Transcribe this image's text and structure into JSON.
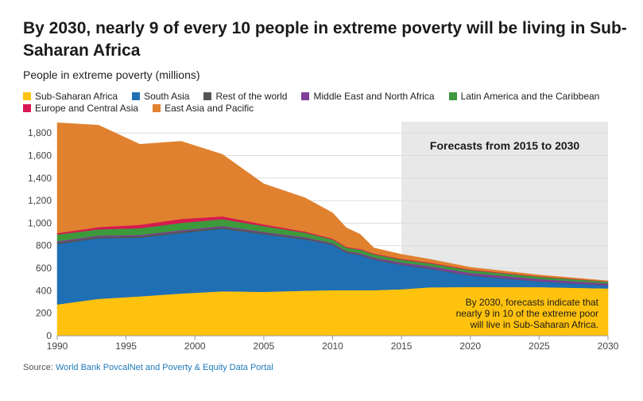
{
  "header": {
    "title": "By 2030, nearly 9 of every 10 people in extreme poverty will be living in Sub-Saharan Africa",
    "subtitle": "People in extreme poverty (millions)"
  },
  "source": {
    "label": "Source:",
    "link_text": "World Bank PovcalNet and Poverty & Equity Data Portal"
  },
  "chart_data": {
    "type": "area",
    "stacked": true,
    "title": "By 2030, nearly 9 of every 10 people in extreme poverty will be living in Sub-Saharan Africa",
    "ylabel": "People in extreme poverty (millions)",
    "xlabel": "",
    "xlim": [
      1990,
      2030
    ],
    "ylim": [
      0,
      1900
    ],
    "x_ticks": [
      "1990",
      "1995",
      "2000",
      "2005",
      "2010",
      "2015",
      "2020",
      "2025",
      "2030"
    ],
    "y_ticks": [
      "0",
      "200",
      "400",
      "600",
      "800",
      "1,000",
      "1,200",
      "1,400",
      "1,600",
      "1,800"
    ],
    "grid": true,
    "legend_position": "top",
    "x": [
      1990,
      1993,
      1996,
      1999,
      2002,
      2005,
      2008,
      2010,
      2011,
      2012,
      2013,
      2015,
      2017,
      2020,
      2025,
      2030
    ],
    "series": [
      {
        "name": "Sub-Saharan Africa",
        "color": "#ffc20e",
        "values": [
          278,
          328,
          350,
          375,
          395,
          390,
          400,
          405,
          405,
          405,
          405,
          413,
          430,
          433,
          432,
          420
        ]
      },
      {
        "name": "South Asia",
        "color": "#1f6fb5",
        "values": [
          536,
          537,
          520,
          537,
          555,
          510,
          455,
          400,
          330,
          310,
          270,
          215,
          165,
          100,
          50,
          25
        ]
      },
      {
        "name": "Rest of the world",
        "color": "#555555",
        "values": [
          15,
          15,
          15,
          15,
          15,
          13,
          12,
          10,
          9,
          9,
          8,
          7,
          6,
          5,
          4,
          3
        ]
      },
      {
        "name": "Middle East and North Africa",
        "color": "#7f3f98",
        "values": [
          10,
          10,
          10,
          10,
          10,
          9,
          8,
          8,
          8,
          10,
          12,
          15,
          18,
          20,
          18,
          16
        ]
      },
      {
        "name": "Latin America and the Caribbean",
        "color": "#3c9a3c",
        "values": [
          60,
          55,
          60,
          65,
          60,
          52,
          40,
          32,
          30,
          30,
          28,
          26,
          25,
          24,
          20,
          16
        ]
      },
      {
        "name": "Europe and Central Asia",
        "color": "#d7194f",
        "values": [
          12,
          20,
          30,
          35,
          25,
          15,
          10,
          8,
          7,
          7,
          7,
          7,
          7,
          6,
          4,
          3
        ]
      },
      {
        "name": "East Asia and Pacific",
        "color": "#e0812f",
        "values": [
          980,
          905,
          715,
          690,
          550,
          360,
          300,
          228,
          170,
          130,
          50,
          40,
          30,
          20,
          12,
          5
        ]
      }
    ],
    "annotations": [
      {
        "text": "Forecasts from 2015 to 2030",
        "region": [
          2015,
          2030
        ]
      },
      {
        "text": "By 2030, forecasts indicate that nearly 9 in 10 of the extreme poor will live in Sub-Saharan Africa."
      }
    ]
  }
}
